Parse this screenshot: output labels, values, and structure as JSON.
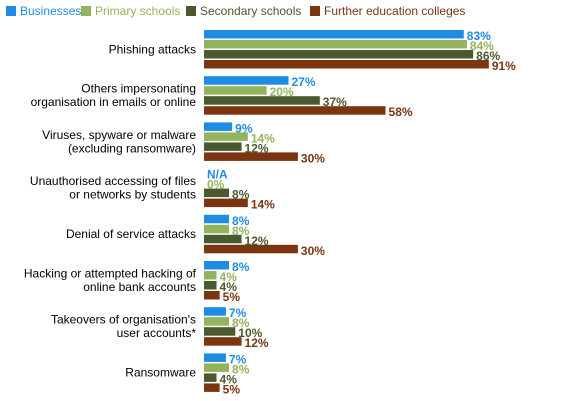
{
  "chart_data": {
    "type": "bar",
    "orientation": "horizontal",
    "legend_position": "top",
    "grid": false,
    "xlim": [
      0,
      100
    ],
    "categories": [
      [
        "Phishing attacks"
      ],
      [
        "Others impersonating",
        "organisation in emails or online"
      ],
      [
        "Viruses, spyware or malware",
        "(excluding ransomware)"
      ],
      [
        "Unauthorised accessing of files",
        "or networks by students"
      ],
      [
        "Denial of service attacks"
      ],
      [
        "Hacking or attempted hacking of",
        "online bank accounts"
      ],
      [
        "Takeovers of organisation's",
        "user accounts*"
      ],
      [
        "Ransomware"
      ]
    ],
    "series": [
      {
        "name": "Businesses",
        "color": "#1f8ce4",
        "values": [
          83,
          27,
          9,
          null,
          8,
          8,
          7,
          7
        ],
        "labels": [
          "83%",
          "27%",
          "9%",
          "N/A",
          "8%",
          "8%",
          "7%",
          "7%"
        ]
      },
      {
        "name": "Primary schools",
        "color": "#93b45c",
        "values": [
          84,
          20,
          14,
          0,
          8,
          4,
          8,
          8
        ],
        "labels": [
          "84%",
          "20%",
          "14%",
          "0%",
          "8%",
          "4%",
          "8%",
          "8%"
        ]
      },
      {
        "name": "Secondary schools",
        "color": "#4a5a2e",
        "values": [
          86,
          37,
          12,
          8,
          12,
          4,
          10,
          4
        ],
        "labels": [
          "86%",
          "37%",
          "12%",
          "8%",
          "12%",
          "4%",
          "10%",
          "4%"
        ]
      },
      {
        "name": "Further education colleges",
        "color": "#7b3510",
        "values": [
          91,
          58,
          30,
          14,
          30,
          5,
          12,
          5
        ],
        "labels": [
          "91%",
          "58%",
          "30%",
          "14%",
          "30%",
          "5%",
          "12%",
          "5%"
        ]
      }
    ]
  }
}
